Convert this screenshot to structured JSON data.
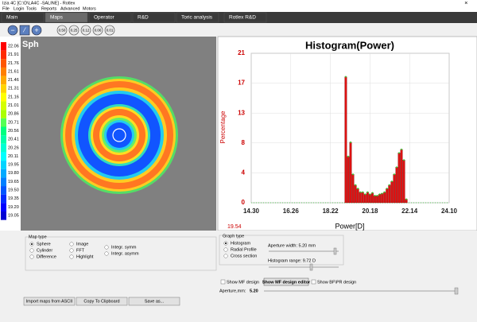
{
  "window": {
    "title": "Izia 4C [C:\\D\\LA4C -SALINE] - Rotlex"
  },
  "menu": [
    "File",
    "Login",
    "Tools",
    "Reports",
    "Advanced",
    "Motors"
  ],
  "tabs": [
    "Main",
    "Maps",
    "Operator",
    "R&D",
    "Toric analysis",
    "Rotlex R&D"
  ],
  "zoom_buttons": [
    "0.50",
    "0.25",
    "0.12",
    "0.06",
    "0.01"
  ],
  "map": {
    "label": "Sph",
    "scale": {
      "labels": [
        "22.06",
        "21.91",
        "21.76",
        "21.61",
        "21.46",
        "21.31",
        "21.16",
        "21.01",
        "20.86",
        "20.71",
        "20.56",
        "20.41",
        "20.26",
        "20.11",
        "19.95",
        "19.80",
        "19.65",
        "19.50",
        "19.35",
        "19.20",
        "19.05"
      ],
      "colors": [
        "#ff0000",
        "#ff2a00",
        "#ff5500",
        "#ff7f00",
        "#ffaa00",
        "#ffd400",
        "#ffff00",
        "#d4ff00",
        "#aaff00",
        "#55ff55",
        "#00ff7f",
        "#00ffaa",
        "#00ffd4",
        "#00ffff",
        "#00d4ff",
        "#00aaff",
        "#007fff",
        "#0055ff",
        "#002aff",
        "#0000ff",
        "#0000d4"
      ]
    }
  },
  "chart_data": {
    "type": "bar",
    "title": "Histogram(Power)",
    "x_label": "Power[D]",
    "y_label": "Percentage",
    "note": "19.54",
    "x": [
      18.98,
      19.1,
      19.22,
      19.34,
      19.46,
      19.58,
      19.7,
      19.82,
      19.94,
      20.06,
      20.18,
      20.3,
      20.42,
      20.54,
      20.66,
      20.78,
      20.9,
      21.02,
      21.14,
      21.26,
      21.38,
      21.5,
      21.62,
      21.74,
      21.86,
      21.98
    ],
    "values": [
      17.7,
      6.5,
      8.5,
      4,
      2.5,
      2,
      1.5,
      1.5,
      1.2,
      1.5,
      1.2,
      1.4,
      1,
      1,
      1.2,
      1.3,
      1.5,
      2,
      2.5,
      3,
      4,
      5,
      7,
      7.5,
      6,
      0.5
    ],
    "color": "#dd1111",
    "grid": true,
    "xlim": [
      14.3,
      24.1
    ],
    "xticks": [
      {
        "value": 14.3,
        "label": "14.30"
      },
      {
        "value": 16.26,
        "label": "16.26"
      },
      {
        "value": 18.22,
        "label": "18.22"
      },
      {
        "value": 20.18,
        "label": "20.18"
      },
      {
        "value": 22.14,
        "label": "22.14"
      },
      {
        "value": 24.1,
        "label": "24.10"
      }
    ],
    "ylim": [
      0,
      21
    ],
    "yticks": [
      0,
      {
        "value": 4.2,
        "label": "4"
      },
      {
        "value": 8.4,
        "label": "8"
      },
      {
        "value": 12.6,
        "label": "13"
      },
      {
        "value": 16.8,
        "label": "17"
      },
      21
    ]
  },
  "controls": {
    "map_type": {
      "title": "Map type",
      "options": [
        "Sphere",
        "Cylinder",
        "Difference",
        "Image",
        "FFT",
        "Highlight",
        "Integr. symm",
        "Integr. asymm"
      ]
    },
    "graph_type": {
      "title": "Graph type",
      "options": [
        "Histogram",
        "Radial Profile",
        "Cross section"
      ],
      "aperture_width": "Aperture width: 5.20 mm",
      "histogram_range": "Histogram range: 9.72 D"
    },
    "show_mf": "Show MF design",
    "mf_editor": "Show MF design editor",
    "show_bf": "Show BF\\PR design",
    "aperture_label": "Aperture,mm:",
    "aperture_value": "5.20",
    "buttons": [
      "Import maps from ASCII",
      "Copy To Clipboard",
      "Save as..."
    ]
  }
}
